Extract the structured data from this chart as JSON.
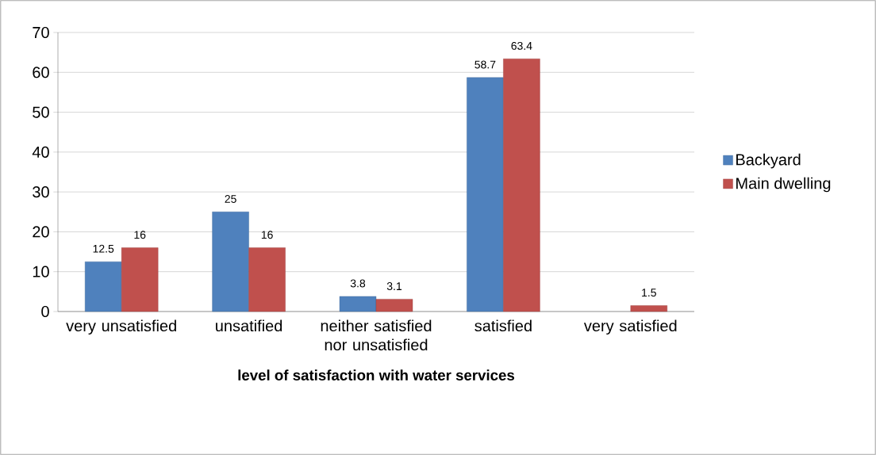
{
  "chart_data": {
    "type": "bar",
    "xlabel": "level of satisfaction with water services",
    "categories": [
      "very unsatisfied",
      "unsatified",
      "neither satisfied nor unsatisfied",
      "satisfied",
      "very satisfied"
    ],
    "series": [
      {
        "name": "Backyard",
        "color": "#4f81bd",
        "values": [
          12.5,
          25,
          3.8,
          58.7,
          null
        ]
      },
      {
        "name": "Main dwelling",
        "color": "#c0504d",
        "values": [
          16,
          16,
          3.1,
          63.4,
          1.5
        ]
      }
    ],
    "ylim": [
      0,
      70
    ],
    "yticks": [
      0,
      10,
      20,
      30,
      40,
      50,
      60,
      70
    ],
    "grid": "y",
    "legend": "right",
    "data_labels": true
  }
}
